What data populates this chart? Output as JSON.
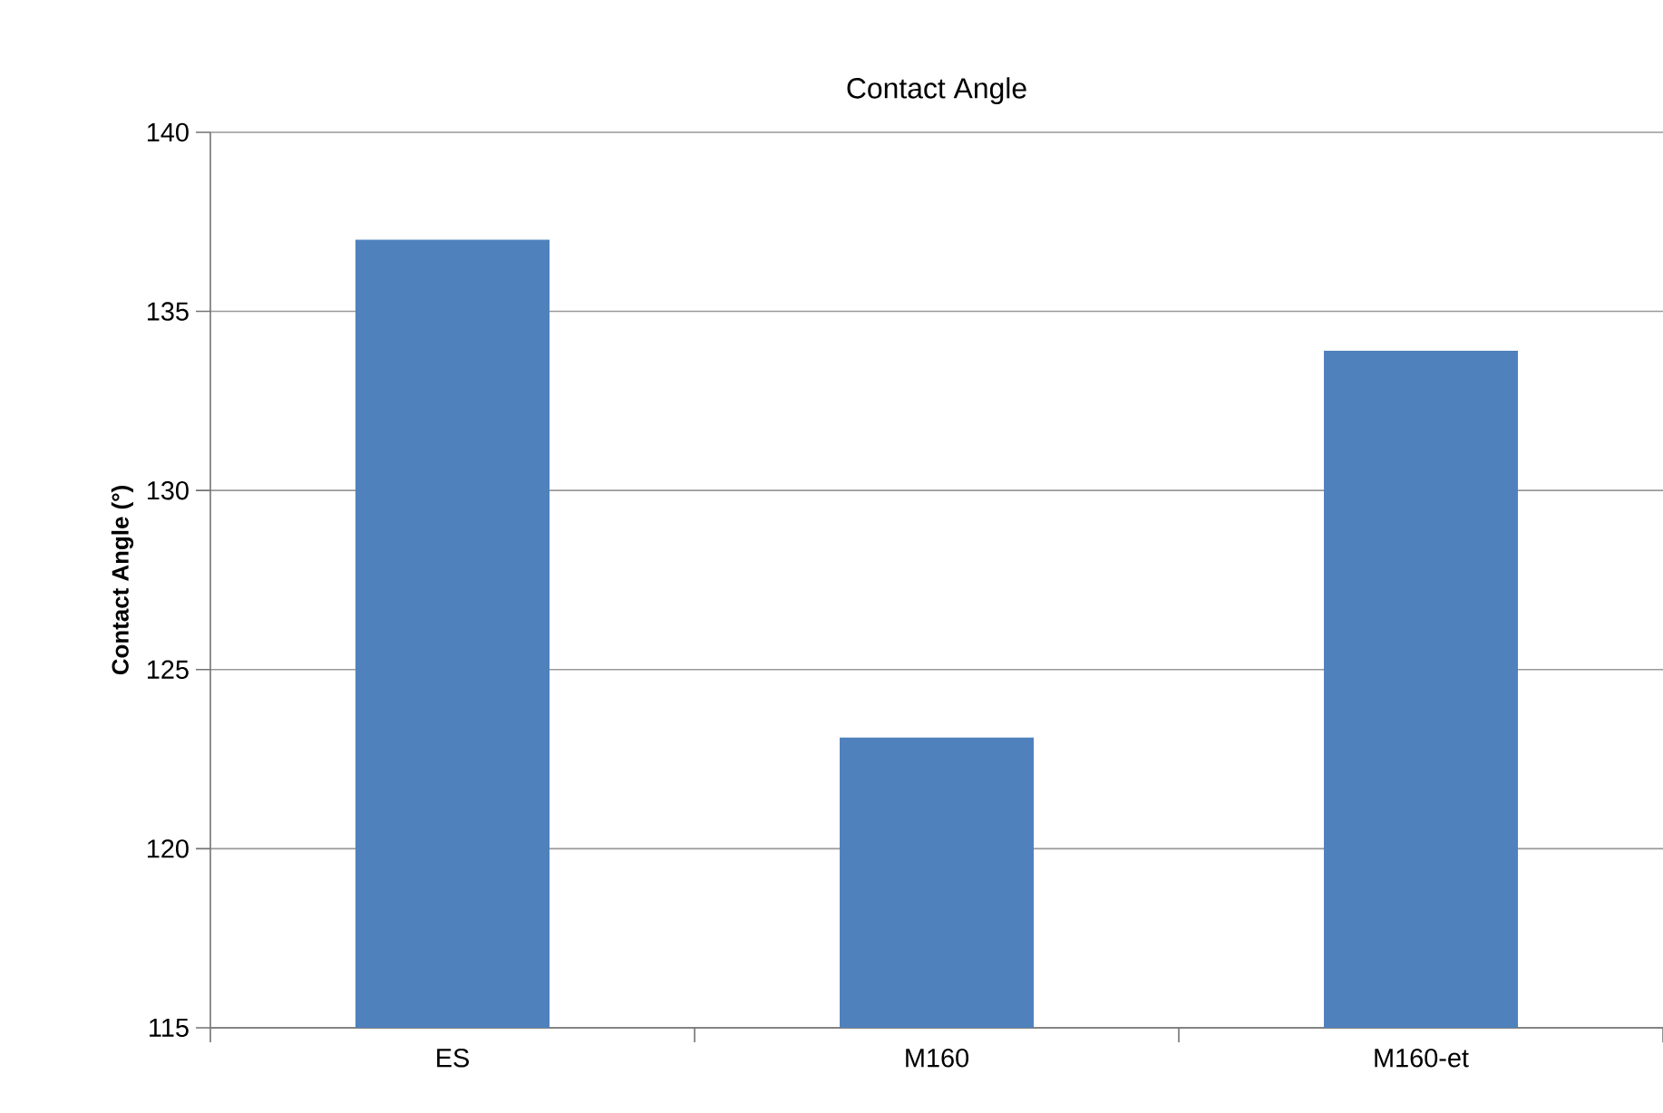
{
  "chart_data": {
    "type": "bar",
    "title": "Contact Angle",
    "ylabel": "Contact Angle (°)",
    "categories": [
      "ES",
      "M160",
      "M160-et"
    ],
    "values": [
      137.0,
      123.1,
      133.9
    ],
    "color": "#4f81bd",
    "ylim": [
      115,
      140
    ],
    "yticks": [
      115,
      120,
      125,
      130,
      135,
      140
    ],
    "grid": "y"
  }
}
